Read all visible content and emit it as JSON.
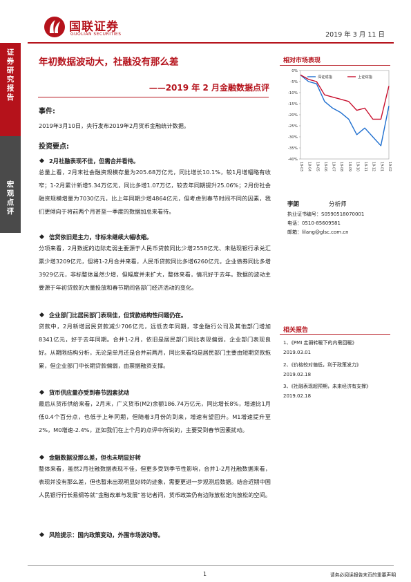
{
  "sidebar": {
    "report_type": "证券研究报告",
    "category": "宏观点评"
  },
  "header": {
    "logo_cn": "国联证券",
    "logo_en": "GUOLIAN SECURITIES",
    "date": "2019 年 3 月 11 日"
  },
  "title": "年初数据波动大，社融没有那么差",
  "subtitle": "——2019 年 2 月金融数据点评",
  "event": {
    "heading": "事件:",
    "text": "2019年3月10日，央行发布2019年2月货币金融统计数据。"
  },
  "points": {
    "heading": "投资要点:",
    "items": [
      {
        "title": "2月社融表现不佳，但需合并看待。",
        "text": "总量上看，2月末社会融资规模存量为205.68万亿元，同比增长10.1%，较1月增幅略有收窄；1-2月累计新增5.34万亿元，同比多增1.07万亿，较去年同期提升25.06%；2月份社会融资规模增量为7030亿元，比上年同期少增4864亿元，但考虑到春节时间不同的因素，我们更倾向于将前两个月甚至一季度的数据加总来看待。"
      },
      {
        "title": "信贷依旧是主力，非标未继续大幅收缩。",
        "text": "分项来看，2月数据的边际走弱主要源于人民币贷款同比少增2558亿元、未贴现银行承兑汇票少增3209亿元，但将1-2月合并来看，人民币贷款同比多增6260亿元，企业债券同比多增3929亿元，非标整体虽然少增，但幅度并未扩大，整体来看，情况好于去年。数据的波动主要源于年初贷款的大量投放和春节期间各部门经济活动的变化。"
      },
      {
        "title": "企业部门比居民部门表现佳，但贷款结构性问题仍在。",
        "text": "贷款中，2月新增居民贷款减少706亿元，远低去年同期，非金融行公司及其他部门增加8341亿元，好于去年同期。合并1-2月，依旧是居民部门同比表现偏弱，企业部门表现良好。从期限结构分析，无论是单月还是合并前两月，同比来看均是居民部门主要由短期贷款拖累，但企业部门中长期贷款偏弱，由票据融资支撑。"
      },
      {
        "title": "货币供应量亦受到春节因素扰动",
        "text": "最后从货币供给来看，2月末，广义货币(M2)余额186.74万亿元，同比增长8%，增速比1月低0.4个百分点，也低于上年同期，但随着3月份的到来，增速有望回升。M1增速提升至2%，M0增速-2.4%，正如我们在上个月的点评中所说的，主要受到春节因素扰动。"
      },
      {
        "title": "金融数据没那么差，但也未明显好转",
        "text": "整体来看，虽然2月社融数据表现不佳，但更多受到季节性影响，合并1-2月社融数据来看，表现并没有那么差，但也暂未出现明显好转的迹象，需要更进一步观测后数据。结合近期中国人民银行行长易纲等就“金融改革与发展”答记者问，货币政策仍有边际放松定向放松的空间。"
      }
    ]
  },
  "risk": {
    "title": "风险提示：国内政策变动，外围市场波动等。"
  },
  "market": {
    "heading": "相对市场表现",
    "chart_data": {
      "type": "line",
      "x": [
        "18-03",
        "18-04",
        "18-05",
        "18-06",
        "18-07",
        "18-08",
        "18-09",
        "18-10",
        "18-11",
        "18-12",
        "19-01",
        "19-02"
      ],
      "series": [
        {
          "name": "深证成指",
          "color": "#1f6fcf",
          "values": [
            -2,
            -5,
            -6,
            -14,
            -17,
            -19,
            -22,
            -29,
            -26,
            -30,
            -34,
            -16
          ]
        },
        {
          "name": "上证综指",
          "color": "#c8102e",
          "values": [
            -2,
            -4,
            -5,
            -11,
            -12,
            -13,
            -14,
            -18,
            -17,
            -22,
            -22,
            -7
          ]
        }
      ],
      "y_ticks": [
        "0%",
        "-5%",
        "-10%",
        "-15%",
        "-20%",
        "-25%",
        "-30%",
        "-35%",
        "-40%"
      ],
      "ylim": [
        -40,
        0
      ]
    }
  },
  "analyst": {
    "name": "李朗",
    "role": "分析师",
    "cert": "执业证书编号：S0590518070001",
    "phone": "电话：0510-85609581",
    "email": "邮箱：lilang@glsc.com.cn"
  },
  "related": {
    "heading": "相关报告",
    "items": [
      {
        "title": "1、《PMI 走弱转暖下的内需回暖》",
        "date": "2019.03.01"
      },
      {
        "title": "2、《价格较对偏低，利于政策发力》",
        "date": "2019.02.18"
      },
      {
        "title": "3、《社融表现超预期，未来经济有支撑》",
        "date": "2019.02.18"
      }
    ]
  },
  "footer": {
    "page": "1",
    "disclaimer": "请务必阅读报告末页的重要声明"
  }
}
